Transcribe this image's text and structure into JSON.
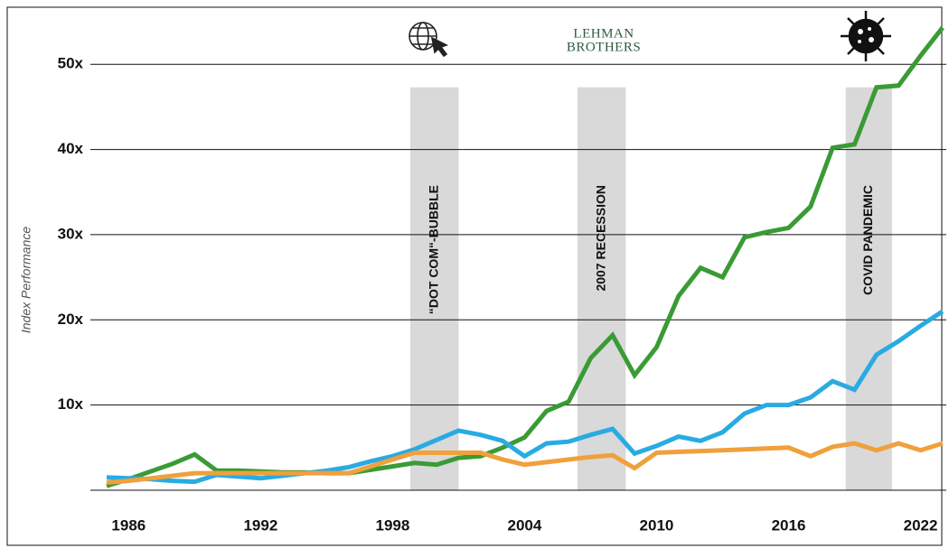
{
  "chart_data": {
    "type": "line",
    "y_label": "Index Performance",
    "logo_text": [
      "LEHMAN",
      "BROTHERS"
    ],
    "x": [
      1985,
      1986,
      1987,
      1988,
      1989,
      1990,
      1991,
      1992,
      1993,
      1994,
      1995,
      1996,
      1997,
      1998,
      1999,
      2000,
      2001,
      2002,
      2003,
      2004,
      2005,
      2006,
      2007,
      2008,
      2009,
      2010,
      2011,
      2012,
      2013,
      2014,
      2015,
      2016,
      2017,
      2018,
      2019,
      2020,
      2021,
      2022,
      2023
    ],
    "series": [
      {
        "color": "#3a9b35",
        "values": [
          0.5,
          1.3,
          2.2,
          3.1,
          4.2,
          2.3,
          2.3,
          2.2,
          2.1,
          2.1,
          2.0,
          2.0,
          2.4,
          2.8,
          3.2,
          3.0,
          3.8,
          4.0,
          5.0,
          6.2,
          9.3,
          10.4,
          15.5,
          18.2,
          13.5,
          16.8,
          22.8,
          26.1,
          25.0,
          29.7,
          30.3,
          30.8,
          33.3,
          40.2,
          40.6,
          47.3,
          47.5,
          51.0,
          54.3
        ]
      },
      {
        "color": "#29abe2",
        "values": [
          1.5,
          1.4,
          1.3,
          1.1,
          1.0,
          1.8,
          1.6,
          1.4,
          1.7,
          2.0,
          2.3,
          2.7,
          3.4,
          4.0,
          4.8,
          5.9,
          7.0,
          6.5,
          5.8,
          4.0,
          5.5,
          5.7,
          6.5,
          7.2,
          4.3,
          5.2,
          6.3,
          5.8,
          6.8,
          9.0,
          10.0,
          10.0,
          10.9,
          12.8,
          11.8,
          15.9,
          17.5,
          19.3,
          21.0
        ]
      },
      {
        "color": "#f0a03c",
        "values": [
          0.9,
          1.1,
          1.4,
          1.7,
          2.0,
          2.0,
          2.0,
          2.0,
          2.0,
          2.0,
          2.0,
          2.0,
          2.8,
          3.6,
          4.4,
          4.4,
          4.4,
          4.4,
          3.6,
          3.0,
          3.3,
          3.6,
          3.9,
          4.1,
          2.6,
          4.4,
          4.5,
          4.6,
          4.7,
          4.8,
          4.9,
          5.0,
          4.0,
          5.1,
          5.5,
          4.7,
          5.5,
          4.7,
          5.5
        ]
      }
    ],
    "shaded_periods": [
      {
        "label": "“DOT COM“-BUBBLE",
        "start": 1998.8,
        "end": 2001.0,
        "top": 47.3
      },
      {
        "label": "2007 RECESSION",
        "start": 2006.4,
        "end": 2008.6,
        "top": 47.3
      },
      {
        "label": "COVID PANDEMIC",
        "start": 2018.6,
        "end": 2020.7,
        "top": 47.3
      }
    ],
    "shade_color": "#d9d9d9",
    "xlim": [
      1984.26,
      2023.17
    ],
    "ylim": [
      0,
      56.7
    ],
    "xticks": [
      1986,
      1992,
      1998,
      2004,
      2010,
      2016,
      2022
    ],
    "yticks": [
      {
        "value": 10,
        "label": "10x"
      },
      {
        "value": 20,
        "label": "20x"
      },
      {
        "value": 30,
        "label": "30x"
      },
      {
        "value": 40,
        "label": "40x"
      },
      {
        "value": 50,
        "label": "50x"
      }
    ],
    "grid": true
  }
}
